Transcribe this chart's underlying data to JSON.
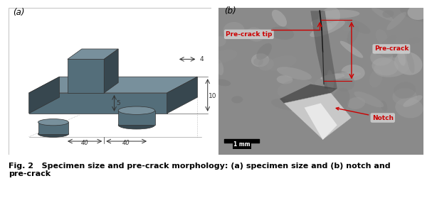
{
  "fig_width": 6.07,
  "fig_height": 2.79,
  "dpi": 100,
  "caption": "Fig. 2   Specimen size and pre-crack morphology: (a) specimen size and (b) notch and\npre-crack",
  "caption_fontsize": 8.0,
  "label_a": "(a)",
  "label_b": "(b)",
  "annotation_color": "#cc0000",
  "scale_bar_text": "1 mm",
  "specimen_light": "#b0bec5",
  "specimen_mid": "#78909c",
  "specimen_dark": "#546e7a",
  "specimen_darker": "#37474f",
  "dim_color": "#333333",
  "sem_bg": "#909090",
  "sem_light": "#b0b0b0",
  "sem_dark": "#606060"
}
